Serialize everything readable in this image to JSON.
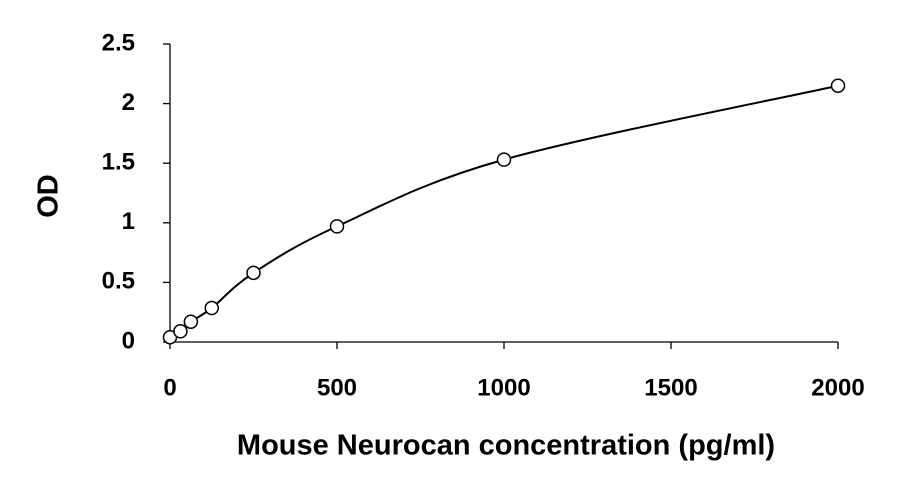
{
  "chart_data": {
    "type": "scatter",
    "x_label": "Mouse Neurocan concentration (pg/ml)",
    "y_label": "OD",
    "x": [
      0,
      31.25,
      62.5,
      125,
      250,
      500,
      1000,
      2000
    ],
    "values": [
      0.04,
      0.09,
      0.17,
      0.285,
      0.58,
      0.97,
      1.53,
      2.15
    ],
    "color": "#000000",
    "smooth": true,
    "xlim": [
      0,
      2000
    ],
    "xticks": [
      0,
      500,
      1000,
      1500,
      2000
    ],
    "ylim": [
      0,
      2.5
    ],
    "yticks": [
      0,
      0.5,
      1,
      1.5,
      2,
      2.5
    ],
    "grid": false
  }
}
